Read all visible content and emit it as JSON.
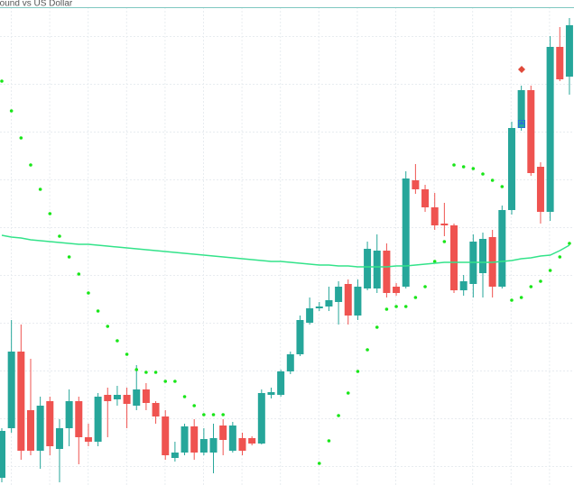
{
  "chart_data": {
    "type": "candlestick",
    "title": "Pound vs US Dollar",
    "ylim": [
      0,
      538
    ],
    "up_color": "#26a69a",
    "down_color": "#ef5350",
    "series": [
      {
        "type": "candlestick",
        "open": [
          8,
          63,
          148,
          83,
          38,
          93,
          40,
          63,
          93,
          53,
          48,
          100,
          95,
          100,
          88,
          106,
          91,
          76,
          30,
          36,
          65,
          36,
          36,
          66,
          38,
          52,
          52,
          46,
          100,
          100,
          126,
          145,
          180,
          196,
          198,
          203,
          223,
          188,
          218,
          218,
          260,
          220,
          220,
          338,
          328,
          308,
          290,
          288,
          216,
          223,
          235,
          275,
          220,
          305,
          396,
          438,
          353,
          303,
          486,
          453
        ],
        "high": [
          63,
          183,
          178,
          140,
          98,
          98,
          73,
          106,
          98,
          68,
          102,
          108,
          110,
          108,
          133,
          113,
          93,
          83,
          48,
          68,
          73,
          63,
          68,
          73,
          70,
          58,
          54,
          106,
          108,
          128,
          148,
          188,
          208,
          203,
          220,
          226,
          228,
          228,
          270,
          278,
          268,
          224,
          348,
          356,
          333,
          324,
          313,
          290,
          233,
          278,
          280,
          283,
          310,
          403,
          443,
          443,
          358,
          498,
          508,
          518
        ],
        "low": [
          3,
          58,
          28,
          33,
          18,
          33,
          3,
          43,
          23,
          43,
          43,
          53,
          88,
          63,
          83,
          83,
          68,
          28,
          26,
          33,
          28,
          33,
          13,
          33,
          36,
          33,
          44,
          45,
          96,
          98,
          123,
          143,
          178,
          193,
          193,
          178,
          178,
          183,
          216,
          213,
          208,
          210,
          218,
          323,
          303,
          283,
          276,
          213,
          210,
          208,
          208,
          208,
          218,
          300,
          393,
          343,
          290,
          293,
          448,
          433
        ],
        "close": [
          60,
          148,
          38,
          38,
          88,
          43,
          63,
          93,
          53,
          48,
          98,
          93,
          100,
          90,
          106,
          91,
          76,
          33,
          36,
          65,
          36,
          51,
          52,
          50,
          66,
          38,
          46,
          102,
          103,
          126,
          145,
          183,
          196,
          198,
          205,
          220,
          188,
          220,
          262,
          260,
          213,
          213,
          340,
          328,
          308,
          288,
          288,
          216,
          226,
          270,
          273,
          220,
          305,
          396,
          438,
          346,
          303,
          486,
          450,
          510
        ]
      },
      {
        "type": "dots",
        "color": "#19e619",
        "values": [
          448,
          415,
          385,
          355,
          328,
          301,
          276,
          253,
          234,
          213,
          193,
          176,
          160,
          145,
          128,
          125,
          125,
          115,
          115,
          98,
          88,
          78,
          78,
          78,
          null,
          null,
          null,
          null,
          null,
          null,
          null,
          null,
          null,
          24,
          49,
          77,
          102,
          126,
          150,
          175,
          195,
          198,
          198,
          208,
          220,
          248,
          270,
          355,
          353,
          351,
          345,
          338,
          331,
          205,
          208,
          220,
          226,
          238,
          253,
          268
        ]
      },
      {
        "type": "line",
        "color": "#33e38a",
        "values": [
          277,
          275,
          274,
          272,
          271,
          270,
          269,
          268,
          267,
          267,
          266,
          265,
          264,
          263,
          262,
          261,
          260,
          259,
          258,
          257,
          256,
          255,
          254,
          253,
          252,
          251,
          250,
          249,
          248,
          248,
          247,
          246,
          245,
          244,
          244,
          243,
          243,
          242,
          242,
          242,
          242,
          243,
          243,
          244,
          245,
          246,
          247,
          247,
          247,
          247,
          247,
          247,
          248,
          249,
          251,
          252,
          254,
          255,
          260,
          266
        ]
      }
    ]
  }
}
